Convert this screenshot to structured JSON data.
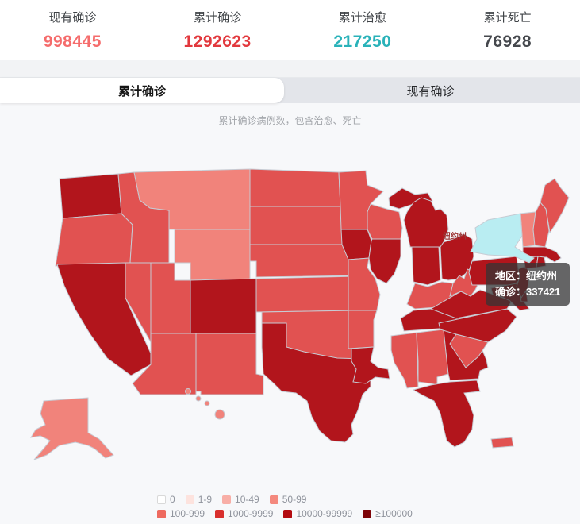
{
  "stats": [
    {
      "label": "现有确诊",
      "value": "998445",
      "color": "#f56c6c"
    },
    {
      "label": "累计确诊",
      "value": "1292623",
      "color": "#e2383d"
    },
    {
      "label": "累计治愈",
      "value": "217250",
      "color": "#29b2b9"
    },
    {
      "label": "累计死亡",
      "value": "76928",
      "color": "#45484d"
    }
  ],
  "tabs": {
    "active": "累计确诊",
    "inactive": "现有确诊"
  },
  "subtitle": "累计确诊病例数，包含治愈、死亡",
  "map": {
    "selected_state_label": "纽约州",
    "tooltip": {
      "region_line": "地区：纽约州",
      "value_line": "确诊：337421"
    },
    "palette": {
      "l1": "#f1837b",
      "l2": "#e15251",
      "l3": "#b2151c",
      "highlight": "#b9edf2"
    },
    "highlight_stroke": "#eefbfc",
    "states": {
      "WA": "l3",
      "OR": "l2",
      "CA": "l3",
      "NV": "l2",
      "ID": "l2",
      "UT": "l2",
      "AZ": "l2",
      "MT": "l1",
      "WY": "l1",
      "CO": "l3",
      "NM": "l2",
      "ND": "l2",
      "SD": "l2",
      "NE": "l2",
      "KS": "l2",
      "OK": "l2",
      "TX": "l3",
      "MN": "l2",
      "IA": "l3",
      "MO": "l2",
      "AR": "l2",
      "LA": "l3",
      "WI": "l2",
      "IL": "l3",
      "MI": "l3",
      "IN": "l3",
      "OH": "l3",
      "KY": "l2",
      "TN": "l3",
      "MS": "l2",
      "AL": "l2",
      "GA": "l3",
      "FL": "l3",
      "SC": "l2",
      "NC": "l3",
      "VA": "l3",
      "WV": "l2",
      "PA": "l3",
      "NY": "highlight",
      "VT": "l1",
      "NH": "l2",
      "ME": "l2",
      "MA": "l3",
      "CT": "l3",
      "RI": "l3",
      "NJ": "l3",
      "DE": "l3",
      "MD": "l3",
      "AK": "l1",
      "HI": "l1",
      "PR": "l2"
    }
  },
  "legend": {
    "rows": [
      [
        {
          "label": "0",
          "color": "#ffffff",
          "border": "#d9d9d9"
        },
        {
          "label": "1-9",
          "color": "#fde3de"
        },
        {
          "label": "10-49",
          "color": "#f8aea6"
        },
        {
          "label": "50-99",
          "color": "#f4897e"
        }
      ],
      [
        {
          "label": "100-999",
          "color": "#ee6a5f"
        },
        {
          "label": "1000-9999",
          "color": "#d9302e"
        },
        {
          "label": "10000-99999",
          "color": "#b30b10"
        },
        {
          "label": "≥100000",
          "color": "#7d0308"
        }
      ]
    ]
  }
}
